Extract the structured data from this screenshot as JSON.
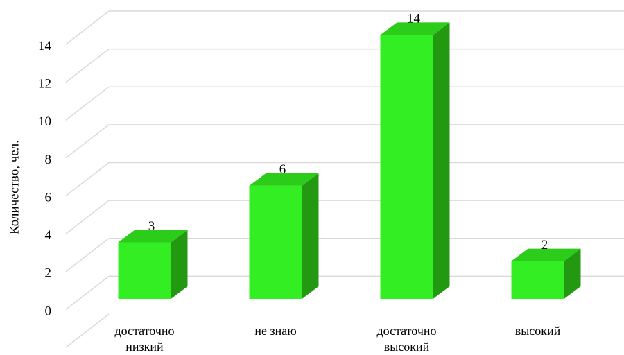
{
  "chart_data": {
    "type": "bar3d",
    "y_axis_label": "Количество, чел.",
    "categories": [
      "достаточно низкий",
      "не знаю",
      "достаточно высокий",
      "высокий"
    ],
    "values": [
      3,
      6,
      14,
      2
    ],
    "color": "#33ee22",
    "ylim": [
      0,
      16
    ],
    "yticks": [
      0,
      2,
      4,
      6,
      8,
      10,
      12,
      14
    ],
    "grid": true
  }
}
